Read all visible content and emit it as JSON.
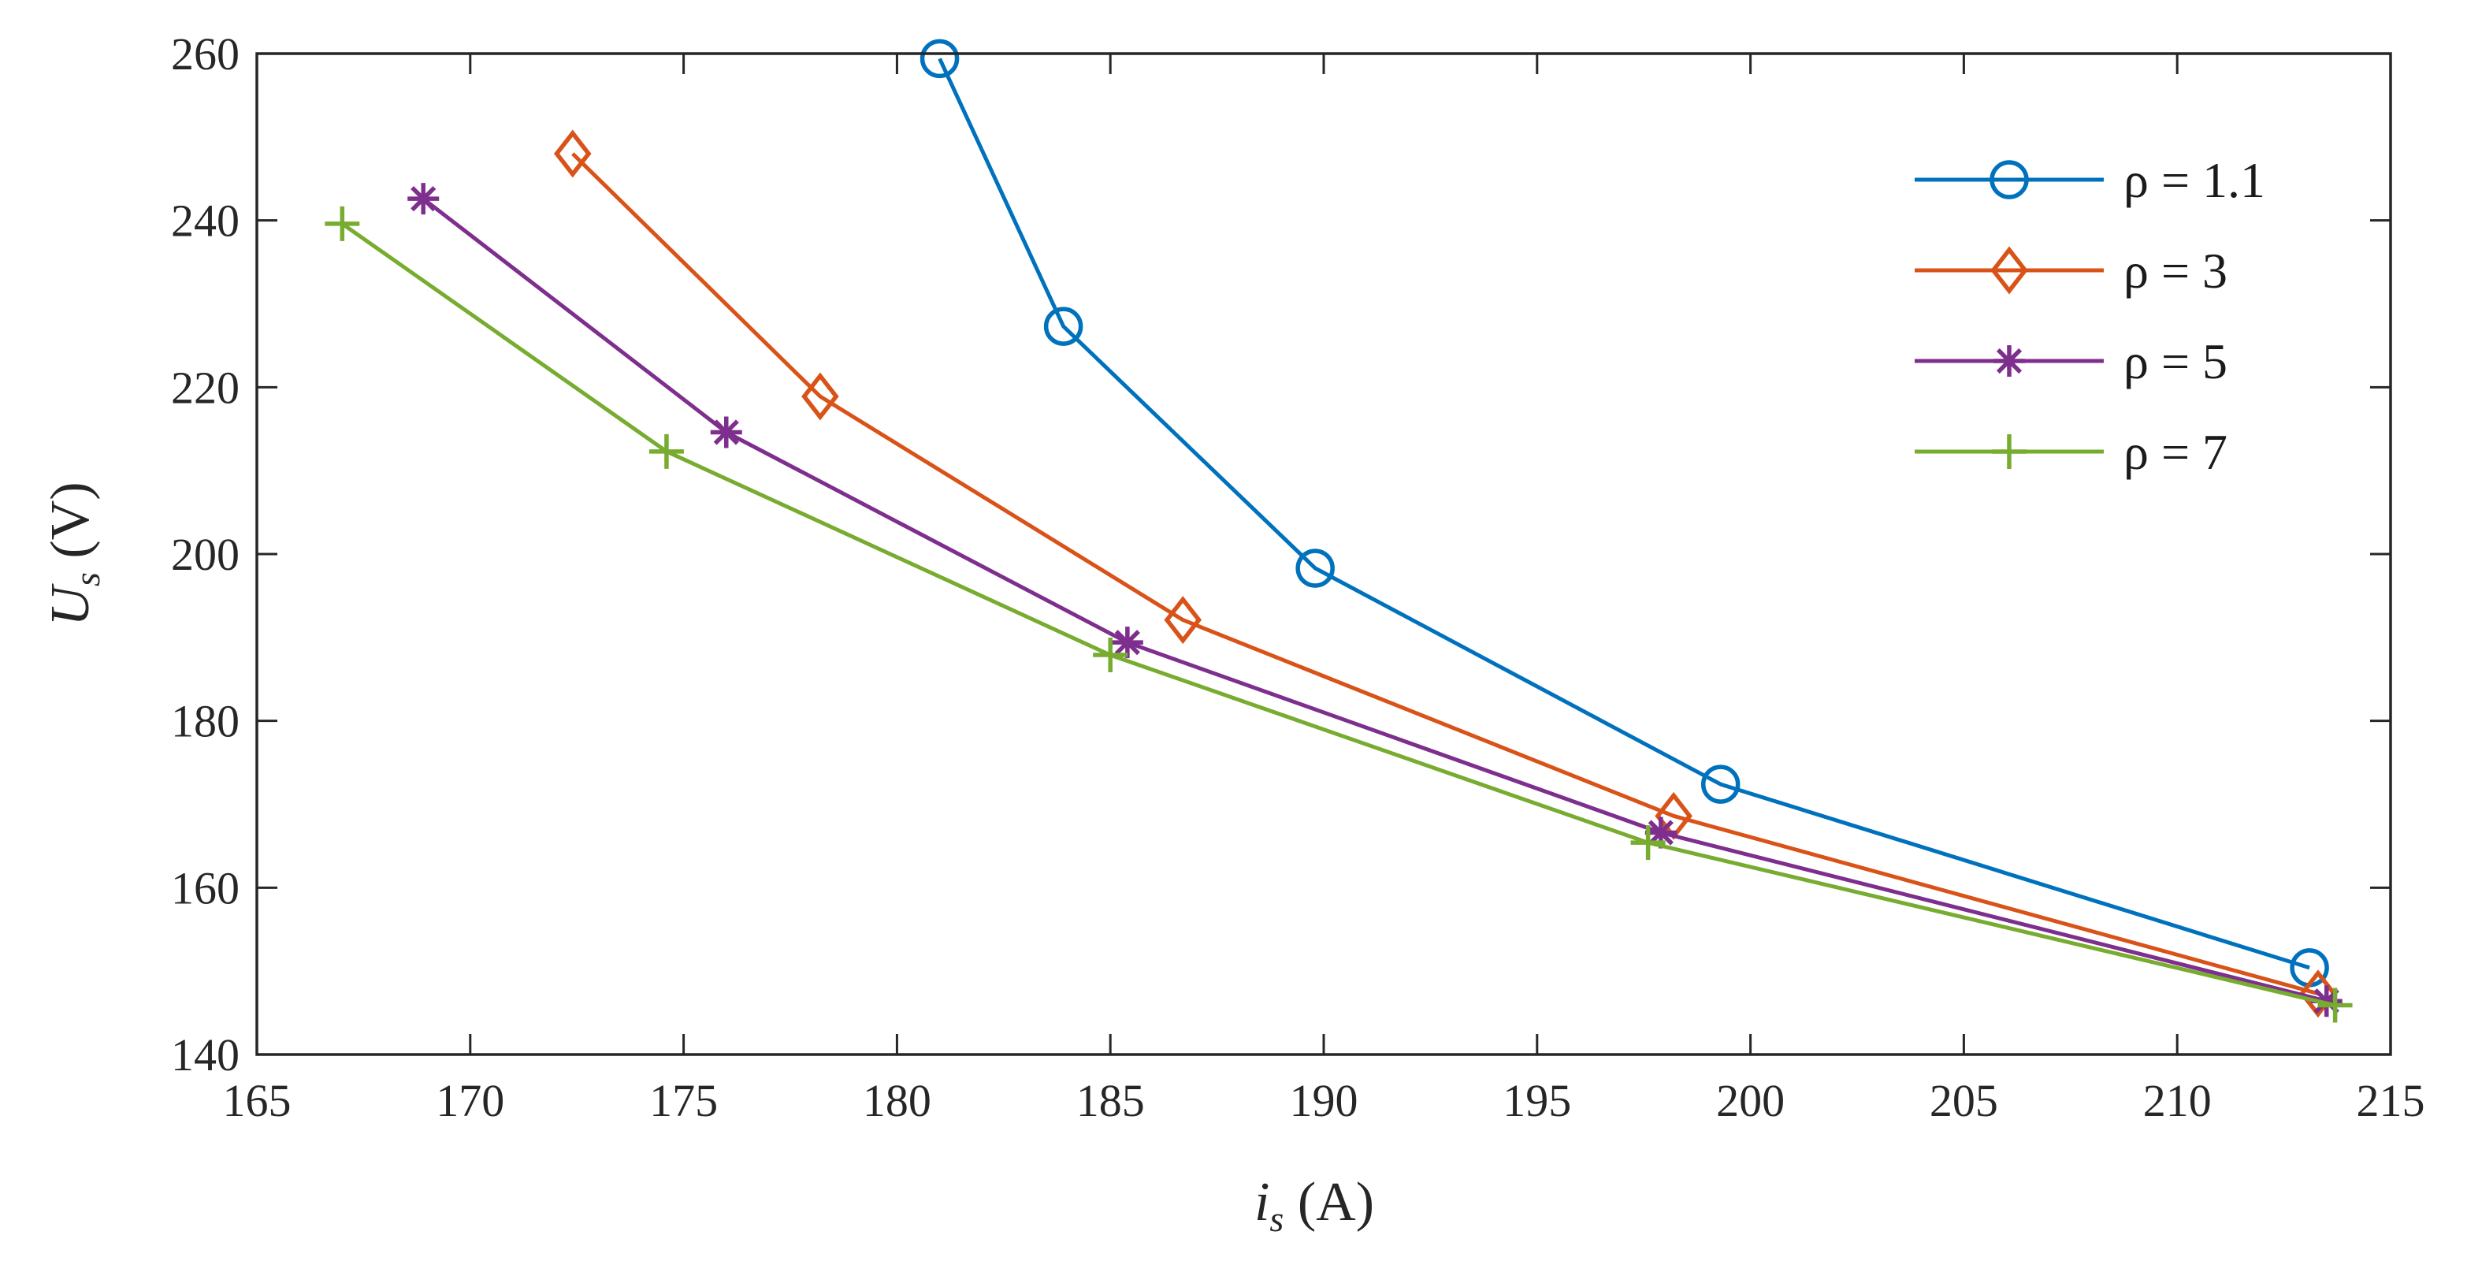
{
  "chart_data": {
    "type": "line",
    "title": "",
    "xlabel": "i_s (A)",
    "ylabel": "U_s (V)",
    "xlabel_parts": {
      "symbol": "i",
      "subscript": "s",
      "unit": " (A)"
    },
    "ylabel_parts": {
      "symbol": "U",
      "subscript": "s",
      "unit": " (V)"
    },
    "xlim": [
      165,
      215
    ],
    "ylim": [
      140,
      260
    ],
    "xticks": [
      165,
      170,
      175,
      180,
      185,
      190,
      195,
      200,
      205,
      210,
      215
    ],
    "yticks": [
      140,
      160,
      180,
      200,
      220,
      240,
      260
    ],
    "grid": false,
    "legend_position": "top-right",
    "series": [
      {
        "name": "ρ = 1.1",
        "color": "#0072BD",
        "marker": "circle",
        "x": [
          181.0,
          183.9,
          189.8,
          199.3,
          213.1
        ],
        "y": [
          259.4,
          227.3,
          198.3,
          172.4,
          150.4
        ]
      },
      {
        "name": "ρ = 3",
        "color": "#D95319",
        "marker": "diamond",
        "x": [
          172.4,
          178.2,
          186.7,
          198.2,
          213.3
        ],
        "y": [
          248.0,
          218.9,
          192.1,
          168.6,
          147.3
        ]
      },
      {
        "name": "ρ = 5",
        "color": "#7E2F8E",
        "marker": "asterisk",
        "x": [
          168.9,
          176.0,
          185.4,
          197.9,
          213.5
        ],
        "y": [
          242.6,
          214.6,
          189.4,
          166.6,
          146.4
        ]
      },
      {
        "name": "ρ = 7",
        "color": "#77AC30",
        "marker": "plus",
        "x": [
          167.0,
          174.6,
          185.0,
          197.6,
          213.7
        ],
        "y": [
          239.6,
          212.3,
          187.9,
          165.4,
          145.9
        ]
      }
    ]
  }
}
